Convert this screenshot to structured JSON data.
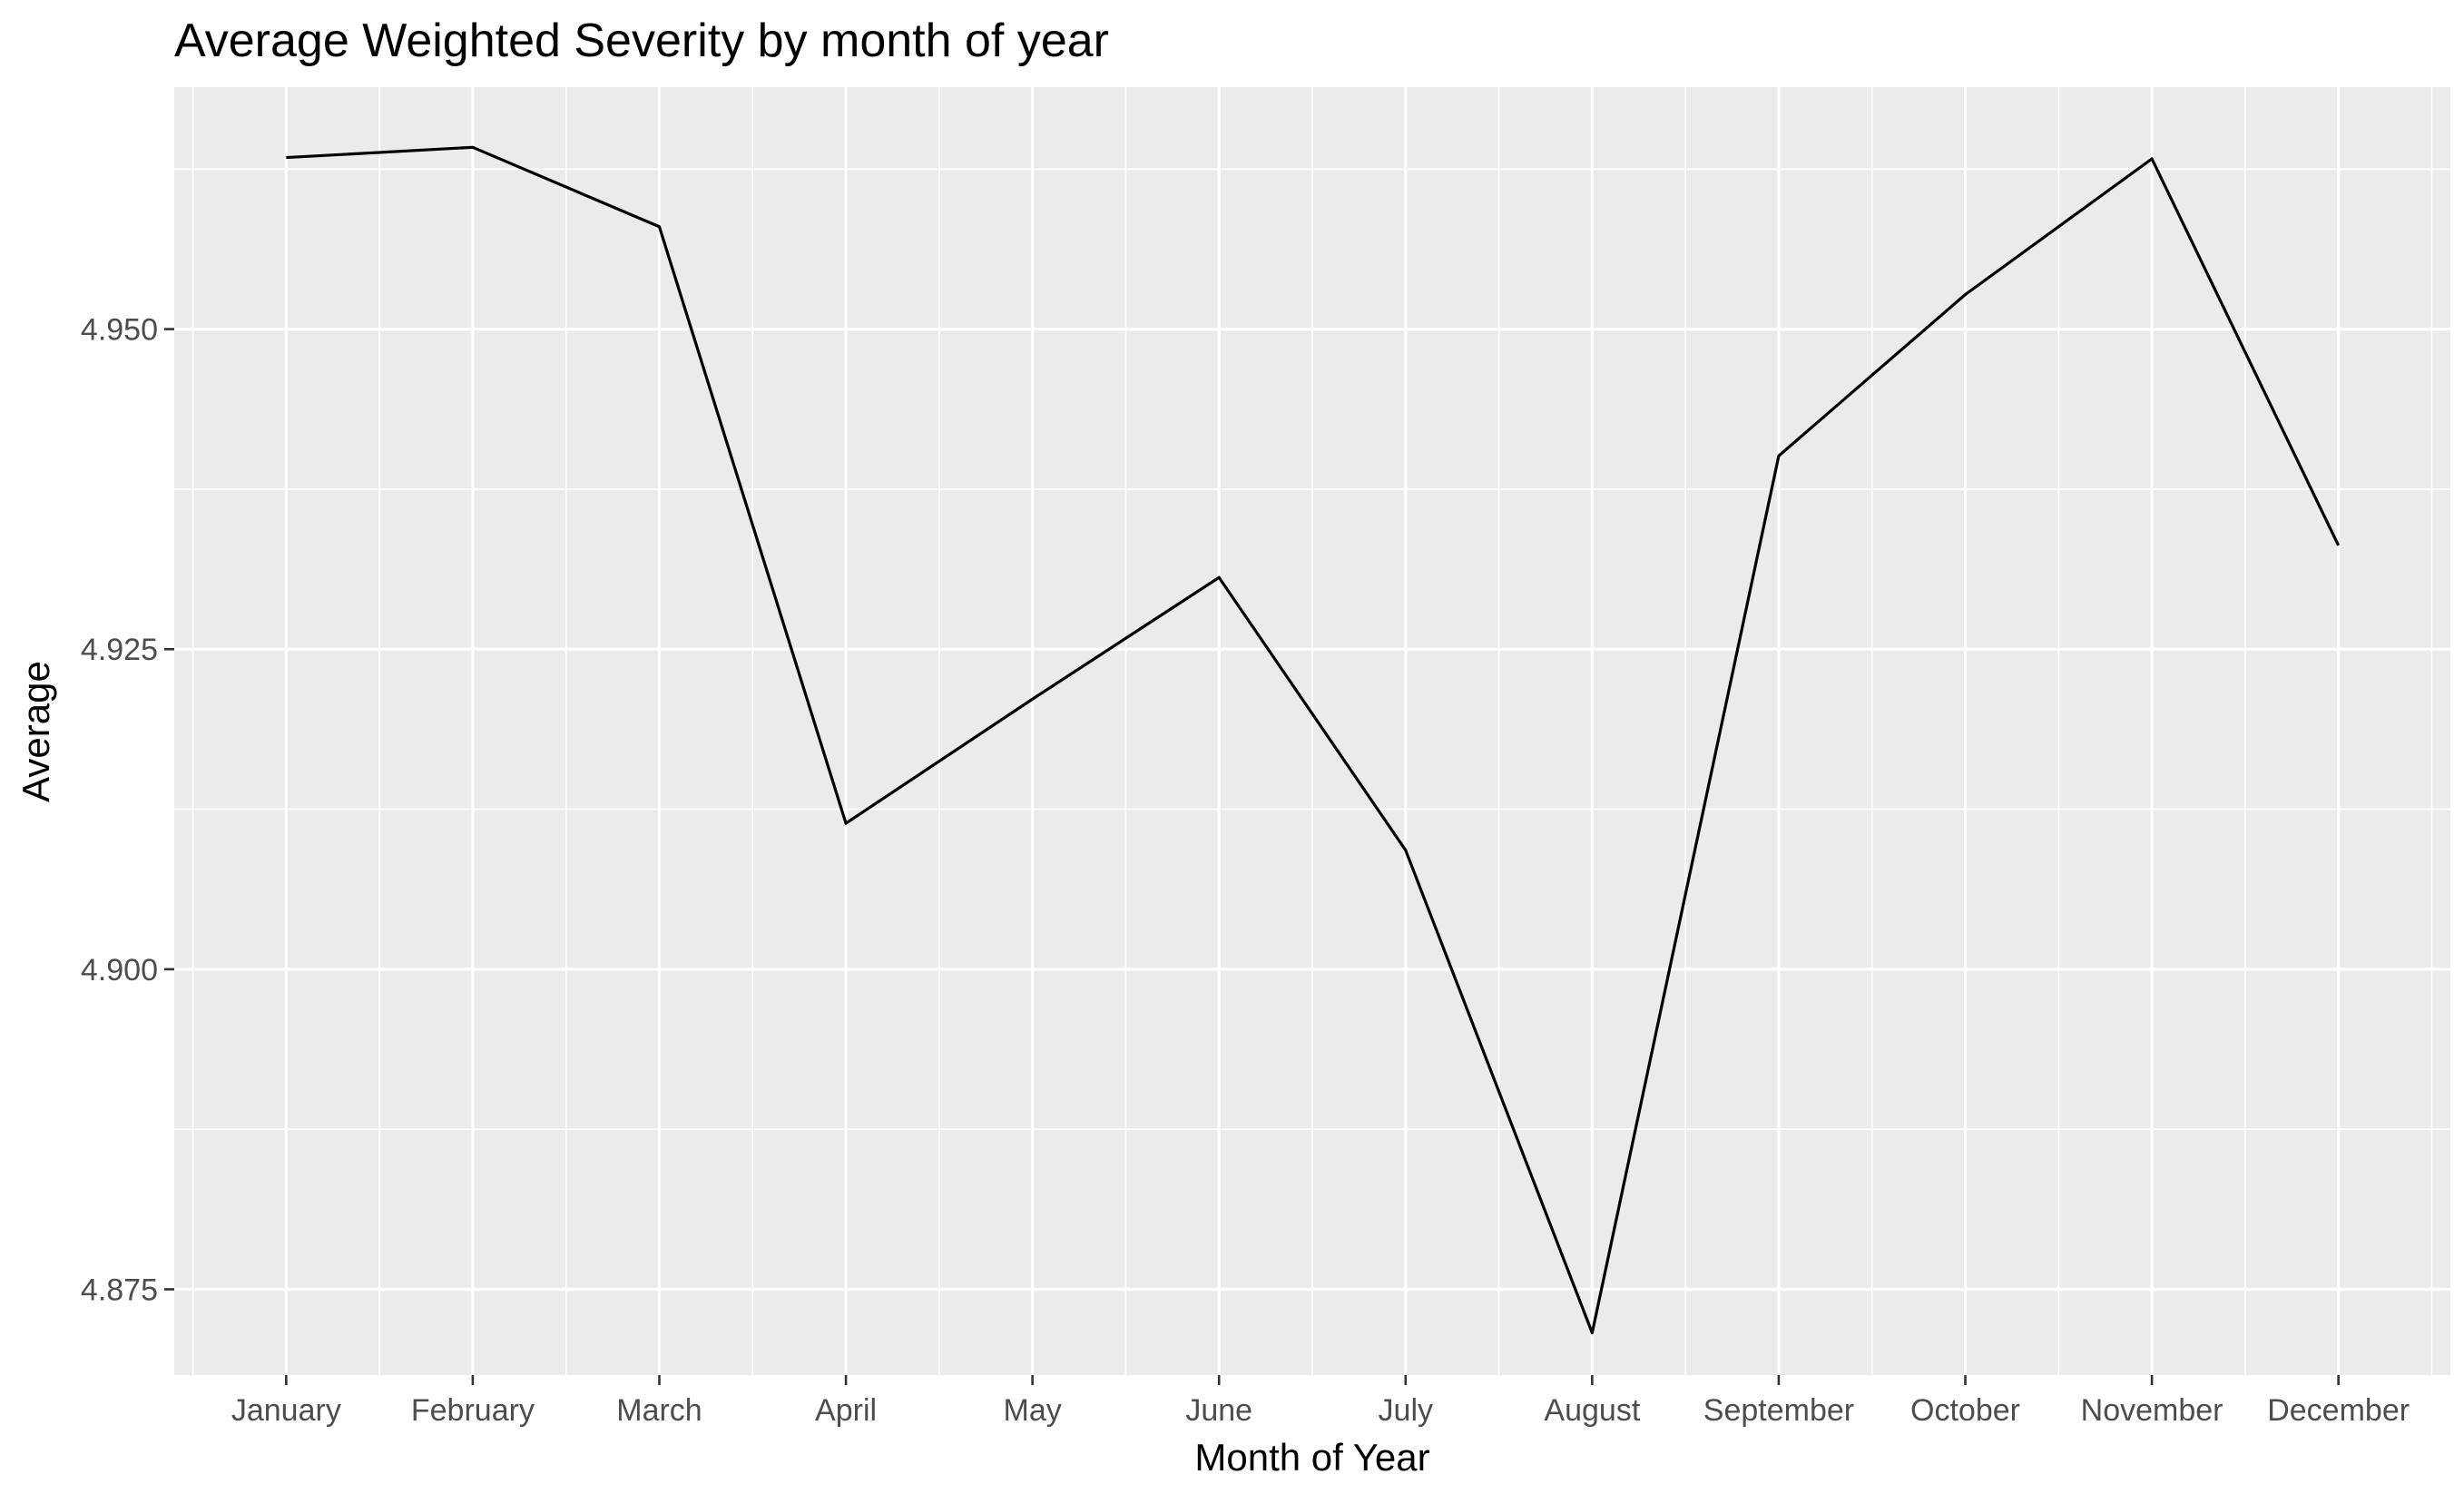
{
  "chart_data": {
    "type": "line",
    "title": "Average Weighted Severity by month of year",
    "xlabel": "Month of Year",
    "ylabel": "Average",
    "categories": [
      "January",
      "February",
      "March",
      "April",
      "May",
      "June",
      "July",
      "August",
      "September",
      "October",
      "November",
      "December"
    ],
    "series": [
      {
        "values": [
          4.9634,
          4.9642,
          4.958,
          4.9114,
          4.9211,
          4.9306,
          4.9093,
          4.8716,
          4.9401,
          4.9527,
          4.9633,
          4.9331
        ],
        "color": "#000000"
      }
    ],
    "yticks": [
      4.875,
      4.9,
      4.925,
      4.95
    ],
    "ytick_labels": [
      "4.875",
      "4.900",
      "4.925",
      "4.950"
    ],
    "ylim": [
      4.8683,
      4.9689
    ],
    "grid": true,
    "legend": "none",
    "panel_color": "#ebebeb",
    "grid_color": "#ffffff"
  }
}
